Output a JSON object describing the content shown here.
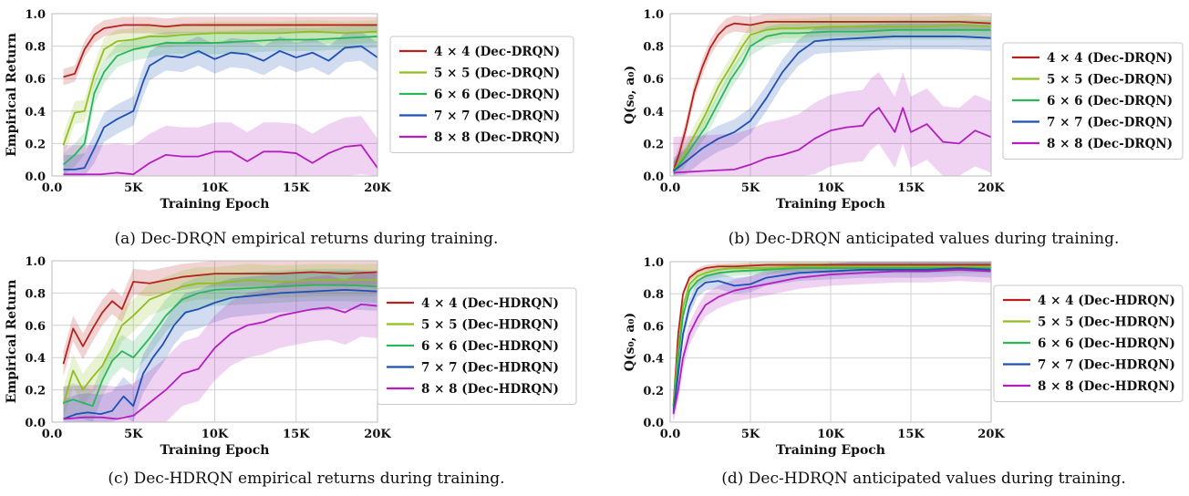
{
  "colors": {
    "4x4": "#b5231e",
    "5x5": "#8fbf1e",
    "6x6": "#2cb55a",
    "7x7": "#1e4fb5",
    "8x8": "#b31fbf",
    "grid": "#d0d0d0"
  },
  "chart_data": [
    {
      "type": "line",
      "caption": "(a) Dec-DRQN empirical returns during training.",
      "xlabel": "Training Epoch",
      "ylabel": "Empirical Return",
      "xlim": [
        0,
        20000
      ],
      "ylim": [
        0,
        1.0
      ],
      "xtick_labels": [
        "0.0",
        "5K",
        "10K",
        "15K",
        "20K"
      ],
      "ytick_labels": [
        "0.0",
        "0.2",
        "0.4",
        "0.6",
        "0.8",
        "1.0"
      ],
      "legend_position": "right",
      "series": [
        {
          "name": "4 × 4 (Dec-DRQN)",
          "color_key": "4x4",
          "band": 0.05,
          "x": [
            700,
            1400,
            2000,
            2600,
            3200,
            3800,
            4400,
            5000,
            6000,
            7000,
            8000,
            10000,
            12000,
            14000,
            16000,
            18000,
            20000
          ],
          "y": [
            0.61,
            0.63,
            0.78,
            0.87,
            0.91,
            0.92,
            0.93,
            0.93,
            0.93,
            0.92,
            0.93,
            0.93,
            0.93,
            0.93,
            0.93,
            0.93,
            0.93
          ]
        },
        {
          "name": "5 × 5 (Dec-DRQN)",
          "color_key": "5x5",
          "band": 0.07,
          "x": [
            700,
            1400,
            2000,
            2600,
            3200,
            4000,
            5000,
            6000,
            7000,
            8000,
            10000,
            12000,
            14000,
            16000,
            18000,
            20000
          ],
          "y": [
            0.19,
            0.39,
            0.4,
            0.62,
            0.78,
            0.83,
            0.84,
            0.86,
            0.86,
            0.87,
            0.88,
            0.88,
            0.88,
            0.89,
            0.88,
            0.89
          ]
        },
        {
          "name": "6 × 6 (Dec-DRQN)",
          "color_key": "6x6",
          "band": 0.07,
          "x": [
            700,
            1400,
            2000,
            2600,
            3200,
            4000,
            5000,
            6000,
            7000,
            8000,
            10000,
            12000,
            14000,
            16000,
            18000,
            20000
          ],
          "y": [
            0.07,
            0.13,
            0.2,
            0.51,
            0.64,
            0.74,
            0.78,
            0.8,
            0.82,
            0.82,
            0.82,
            0.83,
            0.84,
            0.84,
            0.85,
            0.86
          ]
        },
        {
          "name": "7 × 7 (Dec-DRQN)",
          "color_key": "7x7",
          "band": 0.09,
          "x": [
            700,
            1400,
            2000,
            2600,
            3200,
            4000,
            5000,
            5600,
            6000,
            7000,
            8000,
            9000,
            10000,
            11000,
            12000,
            13000,
            14000,
            15000,
            16000,
            17000,
            18000,
            19000,
            20000
          ],
          "y": [
            0.04,
            0.04,
            0.05,
            0.17,
            0.3,
            0.35,
            0.4,
            0.58,
            0.68,
            0.74,
            0.73,
            0.77,
            0.72,
            0.76,
            0.75,
            0.71,
            0.77,
            0.73,
            0.76,
            0.71,
            0.79,
            0.8,
            0.73
          ]
        },
        {
          "name": "8 × 8 (Dec-DRQN)",
          "color_key": "8x8",
          "band": 0.18,
          "x": [
            700,
            2000,
            3000,
            4000,
            5000,
            6000,
            7000,
            8000,
            9000,
            10000,
            11000,
            12000,
            13000,
            14000,
            15000,
            16000,
            17000,
            18000,
            19000,
            20000
          ],
          "y": [
            0.01,
            0.01,
            0.01,
            0.02,
            0.01,
            0.08,
            0.13,
            0.12,
            0.12,
            0.15,
            0.15,
            0.09,
            0.15,
            0.15,
            0.14,
            0.08,
            0.14,
            0.18,
            0.19,
            0.05
          ]
        }
      ]
    },
    {
      "type": "line",
      "caption": "(b) Dec-DRQN anticipated values during training.",
      "xlabel": "Training Epoch",
      "ylabel": "Q(s₀, a₀)",
      "xlim": [
        0,
        20000
      ],
      "ylim": [
        0,
        1.0
      ],
      "xtick_labels": [
        "0.0",
        "5K",
        "10K",
        "15K",
        "20K"
      ],
      "ytick_labels": [
        "0.0",
        "0.2",
        "0.4",
        "0.6",
        "0.8",
        "1.0"
      ],
      "legend_position": "right",
      "series": [
        {
          "name": "4 × 4 (Dec-DRQN)",
          "color_key": "4x4",
          "band": 0.05,
          "x": [
            200,
            600,
            1000,
            1500,
            2000,
            2500,
            3000,
            3500,
            4000,
            5000,
            6000,
            8000,
            10000,
            12000,
            14000,
            16000,
            18000,
            20000
          ],
          "y": [
            0.03,
            0.15,
            0.3,
            0.52,
            0.67,
            0.79,
            0.87,
            0.92,
            0.94,
            0.93,
            0.95,
            0.95,
            0.95,
            0.95,
            0.95,
            0.95,
            0.95,
            0.94
          ]
        },
        {
          "name": "5 × 5 (Dec-DRQN)",
          "color_key": "5x5",
          "band": 0.06,
          "x": [
            200,
            800,
            1500,
            2200,
            3000,
            3800,
            4500,
            5000,
            6000,
            7000,
            8000,
            10000,
            12000,
            14000,
            16000,
            18000,
            20000
          ],
          "y": [
            0.03,
            0.12,
            0.25,
            0.38,
            0.55,
            0.68,
            0.8,
            0.87,
            0.9,
            0.91,
            0.91,
            0.92,
            0.92,
            0.92,
            0.92,
            0.93,
            0.92
          ]
        },
        {
          "name": "6 × 6 (Dec-DRQN)",
          "color_key": "6x6",
          "band": 0.06,
          "x": [
            200,
            800,
            1500,
            2200,
            3000,
            3800,
            4500,
            5000,
            6000,
            7000,
            8000,
            10000,
            12000,
            14000,
            16000,
            18000,
            20000
          ],
          "y": [
            0.03,
            0.1,
            0.2,
            0.3,
            0.45,
            0.6,
            0.7,
            0.8,
            0.86,
            0.88,
            0.88,
            0.89,
            0.89,
            0.9,
            0.9,
            0.9,
            0.9
          ]
        },
        {
          "name": "7 × 7 (Dec-DRQN)",
          "color_key": "7x7",
          "band": 0.08,
          "x": [
            200,
            1000,
            2000,
            3000,
            4000,
            5000,
            6000,
            7000,
            8000,
            9000,
            10000,
            12000,
            14000,
            16000,
            18000,
            20000
          ],
          "y": [
            0.03,
            0.09,
            0.17,
            0.23,
            0.27,
            0.34,
            0.48,
            0.64,
            0.76,
            0.83,
            0.84,
            0.85,
            0.86,
            0.86,
            0.86,
            0.85
          ]
        },
        {
          "name": "8 × 8 (Dec-DRQN)",
          "color_key": "8x8",
          "band": 0.22,
          "x": [
            200,
            2000,
            4000,
            5000,
            6000,
            7000,
            8000,
            9000,
            10000,
            11000,
            12000,
            12500,
            13000,
            14000,
            14500,
            15000,
            16000,
            17000,
            18000,
            19000,
            20000
          ],
          "y": [
            0.02,
            0.03,
            0.04,
            0.07,
            0.11,
            0.13,
            0.16,
            0.23,
            0.28,
            0.3,
            0.31,
            0.38,
            0.42,
            0.27,
            0.42,
            0.27,
            0.32,
            0.21,
            0.2,
            0.28,
            0.24
          ]
        }
      ]
    },
    {
      "type": "line",
      "caption": "(c) Dec-HDRQN empirical returns during training.",
      "xlabel": "Training Epoch",
      "ylabel": "Empirical Return",
      "xlim": [
        0,
        20000
      ],
      "ylim": [
        0,
        1.0
      ],
      "xtick_labels": [
        "0.0",
        "5K",
        "10K",
        "15K",
        "20K"
      ],
      "ytick_labels": [
        "0.0",
        "0.2",
        "0.4",
        "0.6",
        "0.8",
        "1.0"
      ],
      "legend_position": "right",
      "series": [
        {
          "name": "4 × 4 (Dec-HDRQN)",
          "color_key": "4x4",
          "band": 0.08,
          "x": [
            700,
            1300,
            1900,
            2500,
            3100,
            3700,
            4300,
            5000,
            6000,
            7000,
            8000,
            9000,
            10000,
            12000,
            14000,
            16000,
            18000,
            20000
          ],
          "y": [
            0.36,
            0.58,
            0.47,
            0.58,
            0.68,
            0.75,
            0.7,
            0.87,
            0.86,
            0.88,
            0.9,
            0.91,
            0.92,
            0.92,
            0.92,
            0.93,
            0.92,
            0.93
          ]
        },
        {
          "name": "5 × 5 (Dec-HDRQN)",
          "color_key": "5x5",
          "band": 0.1,
          "x": [
            700,
            1300,
            1900,
            2500,
            3100,
            3700,
            4300,
            5000,
            6000,
            7000,
            8000,
            9000,
            10000,
            12000,
            14000,
            16000,
            18000,
            20000
          ],
          "y": [
            0.11,
            0.32,
            0.2,
            0.28,
            0.35,
            0.47,
            0.6,
            0.66,
            0.76,
            0.8,
            0.84,
            0.86,
            0.86,
            0.88,
            0.87,
            0.88,
            0.88,
            0.88
          ]
        },
        {
          "name": "6 × 6 (Dec-HDRQN)",
          "color_key": "6x6",
          "band": 0.1,
          "x": [
            700,
            1300,
            1900,
            2500,
            3100,
            3700,
            4300,
            5000,
            6000,
            7000,
            8000,
            9000,
            10000,
            12000,
            14000,
            16000,
            18000,
            20000
          ],
          "y": [
            0.12,
            0.14,
            0.12,
            0.1,
            0.26,
            0.38,
            0.44,
            0.4,
            0.52,
            0.66,
            0.76,
            0.8,
            0.82,
            0.83,
            0.84,
            0.85,
            0.85,
            0.84
          ]
        },
        {
          "name": "7 × 7 (Dec-HDRQN)",
          "color_key": "7x7",
          "band": 0.12,
          "x": [
            700,
            1500,
            2200,
            3000,
            3700,
            4400,
            5000,
            5600,
            6200,
            6800,
            7500,
            8200,
            9000,
            10000,
            11000,
            12000,
            14000,
            16000,
            18000,
            20000
          ],
          "y": [
            0.02,
            0.05,
            0.06,
            0.05,
            0.07,
            0.16,
            0.1,
            0.3,
            0.4,
            0.48,
            0.6,
            0.68,
            0.7,
            0.74,
            0.77,
            0.78,
            0.8,
            0.81,
            0.82,
            0.81
          ]
        },
        {
          "name": "8 × 8 (Dec-HDRQN)",
          "color_key": "8x8",
          "band": 0.2,
          "x": [
            700,
            2000,
            3000,
            4000,
            5000,
            6000,
            7000,
            8000,
            9000,
            10000,
            11000,
            12000,
            13000,
            14000,
            15000,
            16000,
            17000,
            18000,
            19000,
            20000
          ],
          "y": [
            0.02,
            0.03,
            0.03,
            0.02,
            0.04,
            0.12,
            0.2,
            0.3,
            0.33,
            0.46,
            0.55,
            0.6,
            0.62,
            0.66,
            0.68,
            0.7,
            0.71,
            0.68,
            0.73,
            0.72
          ]
        }
      ]
    },
    {
      "type": "line",
      "caption": "(d) Dec-HDRQN anticipated values during training.",
      "xlabel": "Training Epoch",
      "ylabel": "Q(s₀, a₀)",
      "xlim": [
        0,
        20000
      ],
      "ylim": [
        0,
        1.0
      ],
      "xtick_labels": [
        "0.0",
        "5K",
        "10K",
        "15K",
        "20K"
      ],
      "ytick_labels": [
        "0.0",
        "0.2",
        "0.4",
        "0.6",
        "0.8",
        "1.0"
      ],
      "legend_position": "right",
      "series": [
        {
          "name": "4 × 4 (Dec-HDRQN)",
          "color_key": "4x4",
          "band": 0.02,
          "x": [
            200,
            500,
            800,
            1200,
            1700,
            2200,
            3000,
            4000,
            6000,
            8000,
            10000,
            12000,
            14000,
            16000,
            18000,
            20000
          ],
          "y": [
            0.1,
            0.55,
            0.8,
            0.9,
            0.94,
            0.96,
            0.97,
            0.97,
            0.98,
            0.98,
            0.98,
            0.98,
            0.98,
            0.98,
            0.98,
            0.98
          ]
        },
        {
          "name": "5 × 5 (Dec-HDRQN)",
          "color_key": "5x5",
          "band": 0.03,
          "x": [
            200,
            500,
            800,
            1200,
            1700,
            2200,
            3000,
            4000,
            6000,
            8000,
            10000,
            12000,
            14000,
            16000,
            18000,
            20000
          ],
          "y": [
            0.1,
            0.45,
            0.72,
            0.86,
            0.91,
            0.93,
            0.95,
            0.96,
            0.96,
            0.97,
            0.97,
            0.97,
            0.97,
            0.97,
            0.97,
            0.97
          ]
        },
        {
          "name": "6 × 6 (Dec-HDRQN)",
          "color_key": "6x6",
          "band": 0.03,
          "x": [
            200,
            500,
            800,
            1200,
            1700,
            2200,
            3000,
            4000,
            6000,
            8000,
            10000,
            12000,
            14000,
            16000,
            18000,
            20000
          ],
          "y": [
            0.08,
            0.4,
            0.66,
            0.82,
            0.88,
            0.91,
            0.93,
            0.94,
            0.95,
            0.96,
            0.96,
            0.96,
            0.96,
            0.96,
            0.96,
            0.96
          ]
        },
        {
          "name": "7 × 7 (Dec-HDRQN)",
          "color_key": "7x7",
          "band": 0.05,
          "x": [
            200,
            500,
            800,
            1200,
            1700,
            2200,
            3000,
            4000,
            5000,
            6000,
            8000,
            10000,
            12000,
            14000,
            16000,
            18000,
            20000
          ],
          "y": [
            0.06,
            0.3,
            0.55,
            0.72,
            0.83,
            0.87,
            0.88,
            0.85,
            0.86,
            0.9,
            0.93,
            0.94,
            0.95,
            0.95,
            0.95,
            0.96,
            0.95
          ]
        },
        {
          "name": "8 × 8 (Dec-HDRQN)",
          "color_key": "8x8",
          "band": 0.07,
          "x": [
            200,
            500,
            800,
            1200,
            1700,
            2200,
            3000,
            4000,
            5000,
            6000,
            7000,
            8000,
            10000,
            12000,
            14000,
            16000,
            18000,
            20000
          ],
          "y": [
            0.05,
            0.2,
            0.4,
            0.55,
            0.65,
            0.73,
            0.78,
            0.82,
            0.84,
            0.86,
            0.88,
            0.9,
            0.92,
            0.93,
            0.94,
            0.94,
            0.95,
            0.94
          ]
        }
      ]
    }
  ]
}
